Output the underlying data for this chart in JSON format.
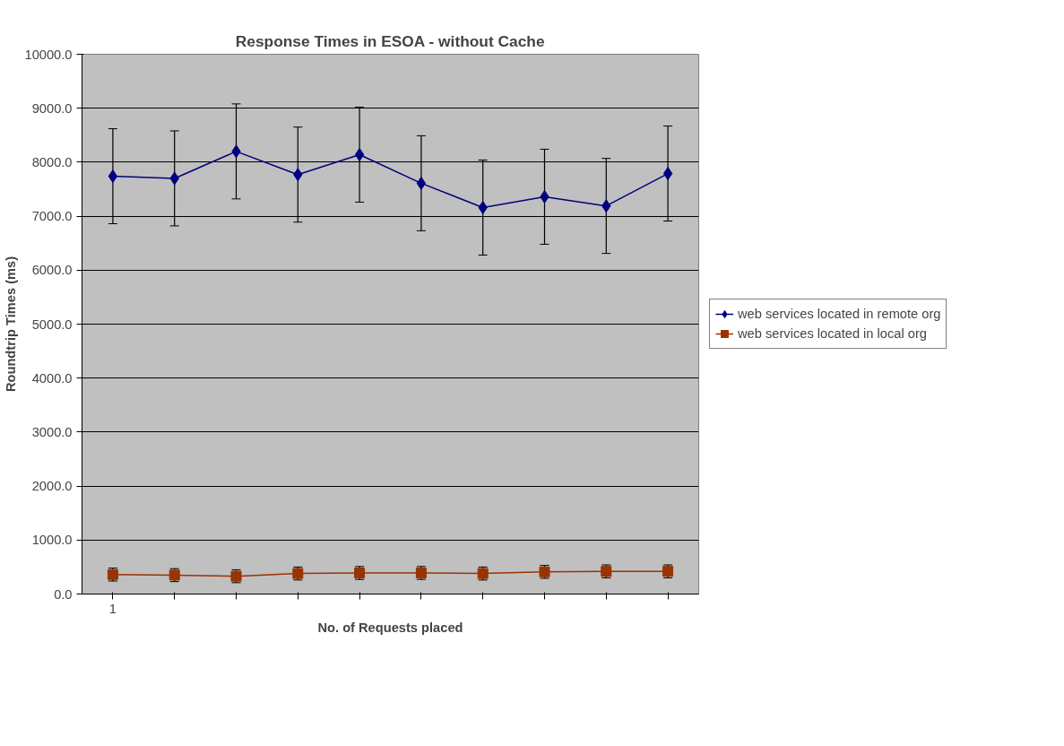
{
  "chart_data": {
    "type": "line",
    "title": "Response Times in ESOA - without Cache",
    "xlabel": "No. of Requests placed",
    "ylabel": "Roundtrip Times (ms)",
    "categories": [
      "1",
      null,
      null,
      null,
      null,
      null,
      null,
      null,
      null,
      null
    ],
    "series": [
      {
        "name": "web services located in remote org",
        "color": "#000080",
        "marker": "diamond",
        "values": [
          7740,
          7700,
          8200,
          7770,
          8140,
          7610,
          7160,
          7360,
          7190,
          7790
        ],
        "errors": [
          880,
          880,
          880,
          880,
          880,
          880,
          880,
          880,
          880,
          880
        ]
      },
      {
        "name": "web services located in local org",
        "color": "#993300",
        "marker": "square",
        "values": [
          360,
          350,
          330,
          380,
          390,
          390,
          380,
          410,
          420,
          420
        ],
        "errors": [
          120,
          120,
          120,
          120,
          120,
          120,
          120,
          120,
          120,
          120
        ]
      }
    ],
    "ylim": [
      0,
      10000
    ],
    "yticks": [
      {
        "value": 0,
        "label": "0.0"
      },
      {
        "value": 1000,
        "label": "1000.0"
      },
      {
        "value": 2000,
        "label": "2000.0"
      },
      {
        "value": 3000,
        "label": "3000.0"
      },
      {
        "value": 4000,
        "label": "4000.0"
      },
      {
        "value": 5000,
        "label": "5000.0"
      },
      {
        "value": 6000,
        "label": "6000.0"
      },
      {
        "value": 7000,
        "label": "7000.0"
      },
      {
        "value": 8000,
        "label": "8000.0"
      },
      {
        "value": 9000,
        "label": "9000.0"
      },
      {
        "value": 10000,
        "label": "10000.0"
      }
    ],
    "grid": "y",
    "legend": "right",
    "line_style": "solid"
  }
}
